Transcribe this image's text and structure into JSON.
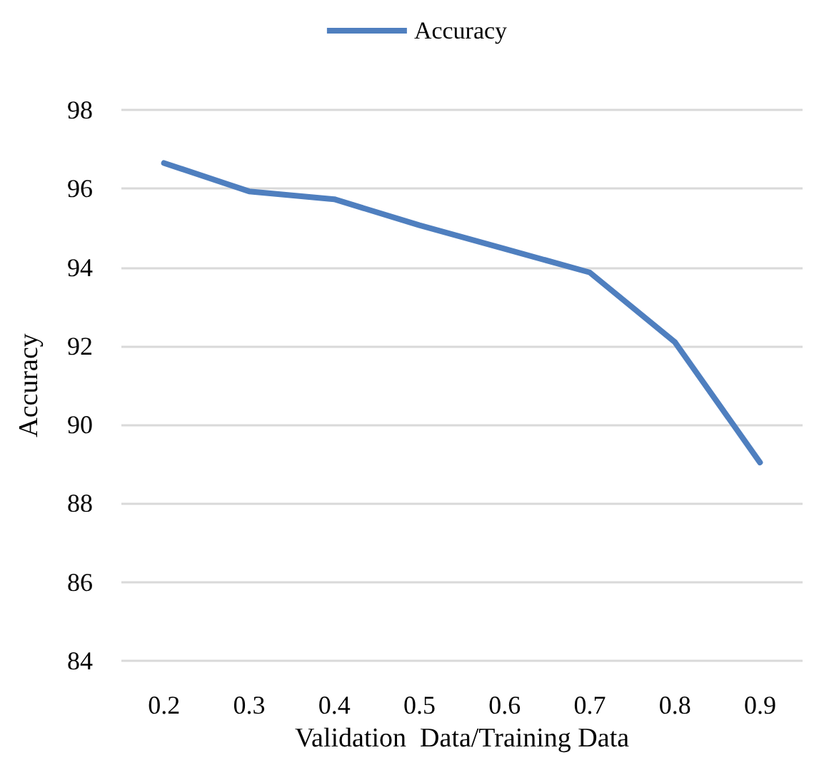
{
  "chart_data": {
    "type": "line",
    "xlabel": "Validation  Data/Training Data",
    "ylabel": "Accuracy",
    "categories": [
      "0.2",
      "0.3",
      "0.4",
      "0.5",
      "0.6",
      "0.7",
      "0.8",
      "0.9"
    ],
    "series": [
      {
        "name": "Accuracy",
        "color": "#4f7fbf",
        "values": [
          96.65,
          95.93,
          95.73,
          95.07,
          94.47,
          93.87,
          92.1,
          89.04
        ]
      }
    ],
    "ylim": [
      84,
      98
    ],
    "yticks": [
      84,
      86,
      88,
      90,
      92,
      94,
      96,
      98
    ],
    "grid": "y",
    "legend": "top",
    "marker": "none",
    "line_style": "solid"
  }
}
